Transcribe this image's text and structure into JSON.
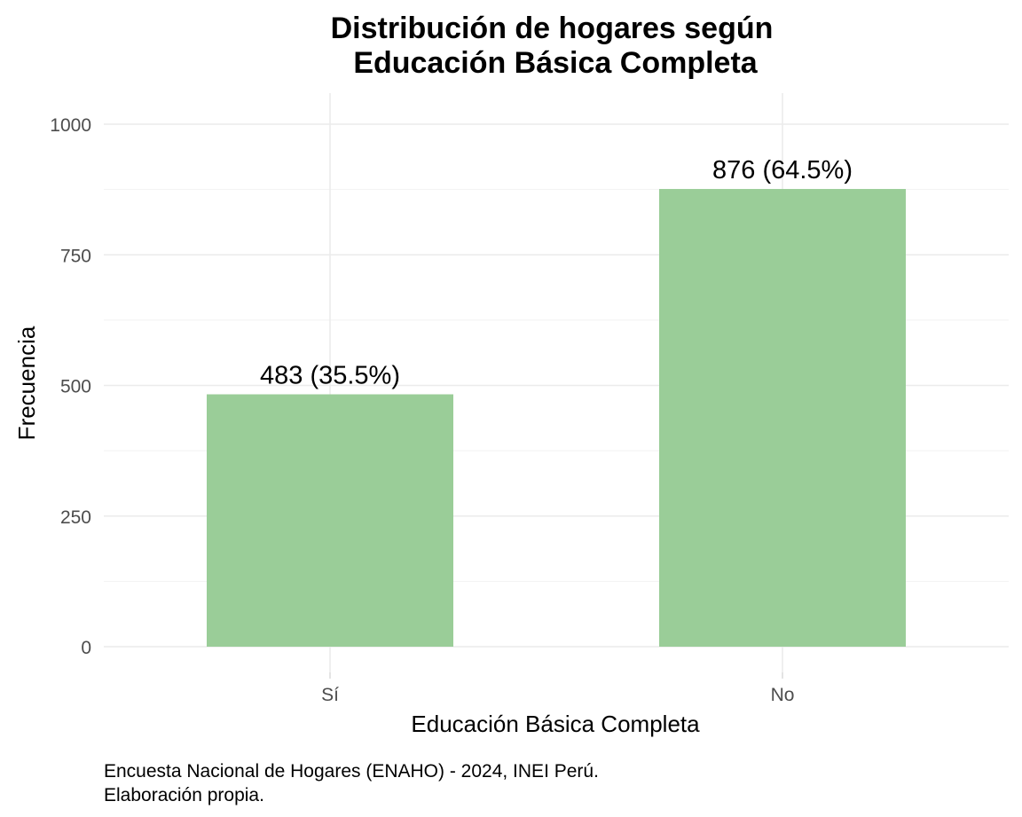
{
  "chart_data": {
    "type": "bar",
    "title": [
      "Distribución de hogares según",
      "Educación Básica Completa"
    ],
    "xlabel": "Educación Básica Completa",
    "ylabel": "Frecuencia",
    "categories": [
      "Sí",
      "No"
    ],
    "values": [
      483,
      876
    ],
    "data_labels": [
      "483 (35.5%)",
      "876 (64.5%)"
    ],
    "ylim": [
      0,
      1000
    ],
    "yticks": [
      0,
      250,
      500,
      750,
      1000
    ],
    "ytick_labels": [
      "0",
      "250",
      "500",
      "750",
      "1000"
    ],
    "grid": true,
    "legend": "none",
    "bar_color": "#9ACD98",
    "caption": [
      "Encuesta Nacional de Hogares (ENAHO) - 2024, INEI Perú.",
      "Elaboración propia."
    ]
  }
}
